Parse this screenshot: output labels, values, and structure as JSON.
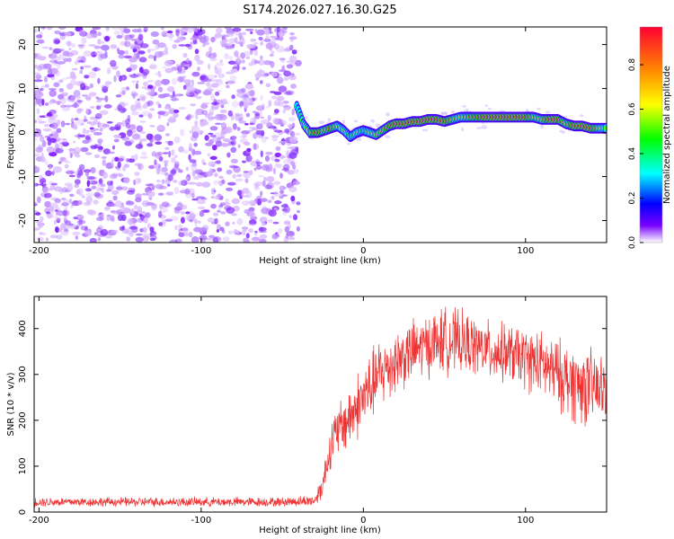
{
  "title": "S174.2026.027.16.30.G25",
  "chart_data": [
    {
      "type": "heatmap",
      "title": "S174.2026.027.16.30.G25",
      "xlabel": "Height of straight line (km)",
      "ylabel": "Frequency (Hz)",
      "xlim": [
        -203,
        150
      ],
      "ylim": [
        -25,
        24
      ],
      "x_ticks": [
        -200,
        -100,
        0,
        100
      ],
      "y_ticks": [
        -20,
        -10,
        0,
        10,
        20
      ],
      "noise_region_x": [
        -203,
        -40
      ],
      "ridge": {
        "x": [
          -41,
          -37,
          -33,
          -28,
          -24,
          -20,
          -16,
          -12,
          -8,
          -4,
          0,
          4,
          8,
          12,
          16,
          20,
          25,
          30,
          35,
          40,
          45,
          50,
          55,
          60,
          65,
          70,
          75,
          80,
          85,
          90,
          95,
          100,
          105,
          110,
          115,
          120,
          125,
          130,
          135,
          140,
          145,
          150
        ],
        "freq": [
          6,
          2,
          0,
          0,
          0.5,
          1,
          1.5,
          0.5,
          -1,
          0,
          0.5,
          0,
          -0.5,
          0.5,
          1.5,
          2,
          2,
          2.5,
          2.5,
          3,
          3,
          2.5,
          3,
          3.5,
          3.5,
          3.5,
          3.5,
          3.5,
          3.5,
          3.5,
          3.5,
          3.5,
          3.5,
          3,
          3,
          3,
          2,
          1.5,
          1.5,
          1,
          1,
          1
        ],
        "amplitude": [
          0.3,
          0.55,
          0.7,
          0.95,
          0.7,
          0.9,
          0.6,
          0.6,
          0.5,
          0.6,
          0.5,
          0.6,
          0.7,
          0.75,
          0.85,
          0.95,
          0.95,
          0.95,
          0.95,
          0.95,
          0.95,
          0.95,
          0.75,
          0.65,
          0.75,
          0.85,
          0.95,
          0.95,
          0.95,
          0.95,
          0.95,
          0.95,
          0.7,
          0.7,
          0.95,
          0.95,
          0.7,
          0.95,
          0.95,
          0.95,
          0.7,
          0.5
        ]
      },
      "colorbar": {
        "label": "Normalized spectral amplitude",
        "range": [
          0,
          0.97
        ],
        "ticks": [
          0.0,
          0.2,
          0.4,
          0.6,
          0.8
        ],
        "tick_labels": [
          "0.0",
          "0.2",
          "0.4",
          "0.6",
          "0.8"
        ]
      }
    },
    {
      "type": "line",
      "xlabel": "Height of straight line (km)",
      "ylabel": "SNR (10 * v/v)",
      "xlim": [
        -203,
        150
      ],
      "ylim": [
        0,
        470
      ],
      "x_ticks": [
        -200,
        -100,
        0,
        100
      ],
      "y_ticks": [
        0,
        100,
        200,
        300,
        400
      ],
      "color": "#ee3333",
      "envelope": {
        "x": [
          -203,
          -150,
          -100,
          -50,
          -30,
          -25,
          -20,
          -15,
          -10,
          0,
          10,
          20,
          30,
          40,
          50,
          60,
          70,
          80,
          90,
          100,
          110,
          120,
          130,
          140,
          150
        ],
        "mean": [
          22,
          22,
          22,
          22,
          25,
          60,
          150,
          180,
          200,
          250,
          300,
          330,
          350,
          365,
          375,
          370,
          360,
          350,
          345,
          335,
          320,
          300,
          280,
          270,
          265
        ],
        "spread": [
          12,
          12,
          12,
          12,
          15,
          35,
          60,
          70,
          80,
          90,
          90,
          85,
          80,
          80,
          85,
          80,
          75,
          75,
          75,
          80,
          85,
          90,
          100,
          100,
          90
        ]
      }
    }
  ]
}
